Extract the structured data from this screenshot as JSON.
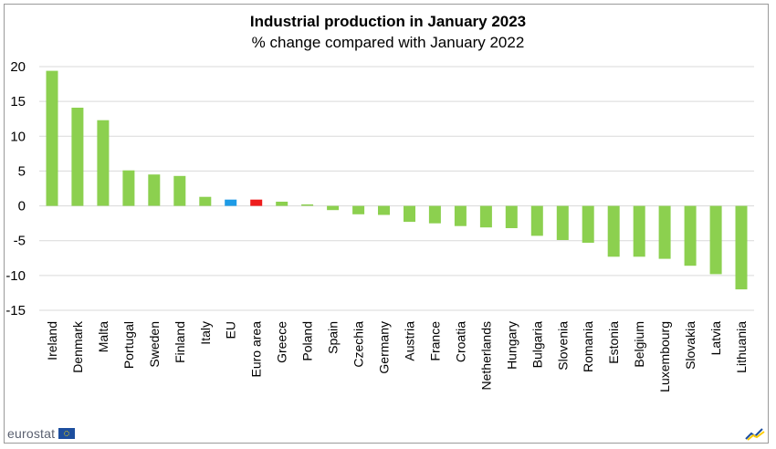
{
  "chart_data": {
    "type": "bar",
    "title": "Industrial production in January 2023",
    "subtitle": "% change compared with January 2022",
    "categories": [
      "Ireland",
      "Denmark",
      "Malta",
      "Portugal",
      "Sweden",
      "Finland",
      "Italy",
      "EU",
      "Euro area",
      "Greece",
      "Poland",
      "Spain",
      "Czechia",
      "Germany",
      "Austria",
      "France",
      "Croatia",
      "Netherlands",
      "Hungary",
      "Bulgaria",
      "Slovenia",
      "Romania",
      "Estonia",
      "Belgium",
      "Luxembourg",
      "Slovakia",
      "Latvia",
      "Lithuania"
    ],
    "values": [
      19.4,
      14.1,
      12.3,
      5.1,
      4.5,
      4.3,
      1.3,
      0.9,
      0.9,
      0.6,
      0.2,
      -0.6,
      -1.2,
      -1.3,
      -2.3,
      -2.5,
      -2.9,
      -3.1,
      -3.2,
      -4.3,
      -4.9,
      -5.3,
      -7.3,
      -7.3,
      -7.6,
      -8.6,
      -9.8,
      -12.0
    ],
    "colors": {
      "default": "#8cd04f",
      "EU": "#1e9be6",
      "Euro area": "#ee1c1c",
      "grid": "#d9d9d9"
    },
    "ylim": [
      -15,
      20
    ],
    "yticks": [
      20,
      15,
      10,
      5,
      0,
      -5,
      -10,
      -15
    ],
    "grid": true,
    "legend": "none",
    "xlabel": "",
    "ylabel": ""
  },
  "branding": {
    "logo_text": "eurostat"
  }
}
